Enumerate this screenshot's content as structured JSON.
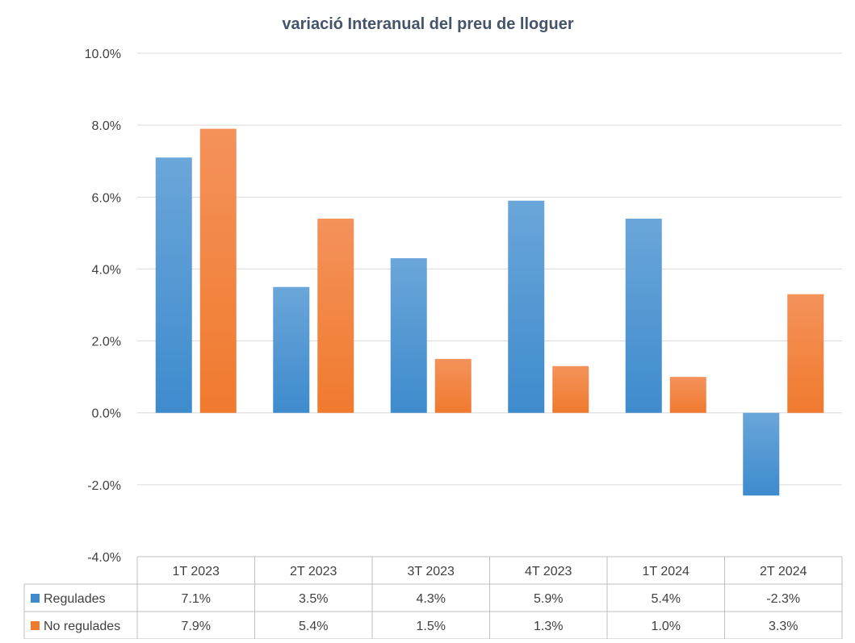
{
  "chart_data": {
    "type": "bar",
    "title": "variació Interanual del preu de lloguer",
    "xlabel": "",
    "ylabel": "",
    "categories": [
      "1T 2023",
      "2T 2023",
      "3T 2023",
      "4T 2023",
      "1T 2024",
      "2T 2024"
    ],
    "series": [
      {
        "name": "Regulades",
        "values": [
          7.1,
          3.5,
          4.3,
          5.9,
          5.4,
          -2.3
        ],
        "labels": [
          "7.1%",
          "3.5%",
          "4.3%",
          "5.9%",
          "5.4%",
          "-2.3%"
        ],
        "color": "#3E8BCD",
        "color_light": "#6AA6D9"
      },
      {
        "name": "No regulades",
        "values": [
          7.9,
          5.4,
          1.5,
          1.3,
          1.0,
          3.3
        ],
        "labels": [
          "7.9%",
          "5.4%",
          "1.5%",
          "1.3%",
          "1.0%",
          "3.3%"
        ],
        "color": "#F07A2E",
        "color_light": "#F4925A"
      }
    ],
    "ylim": [
      -4,
      10
    ],
    "yticks": [
      -4,
      -2,
      0,
      2,
      4,
      6,
      8,
      10
    ],
    "ytick_labels": [
      "-4.0%",
      "-2.0%",
      "0.0%",
      "2.0%",
      "4.0%",
      "6.0%",
      "8.0%",
      "10.0%"
    ],
    "grid": true,
    "legend": "data-table",
    "colors": {
      "title": "#44546A",
      "text": "#404040",
      "grid": "#D9D9D9",
      "table_border": "#BFBFBF"
    }
  }
}
